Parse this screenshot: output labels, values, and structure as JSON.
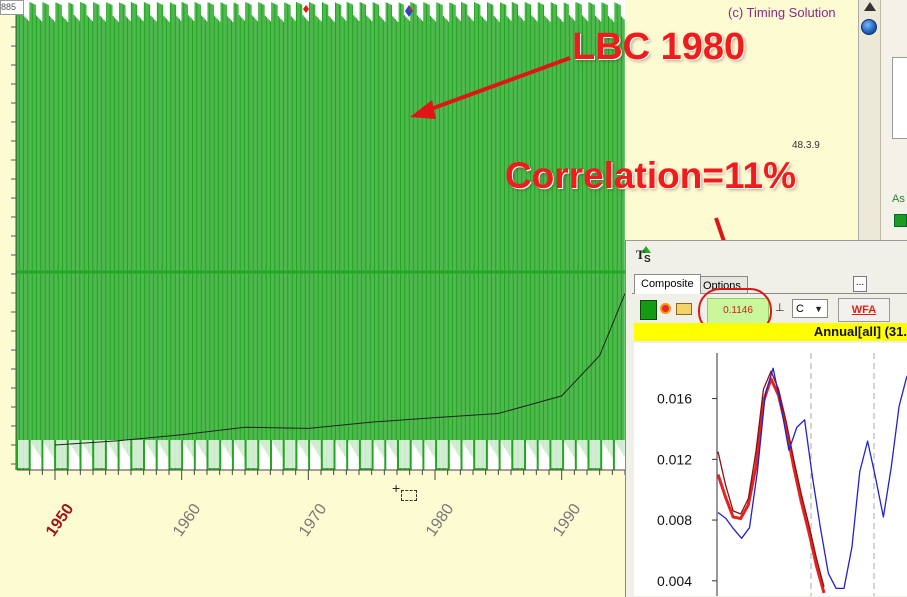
{
  "window": {
    "credit_text": "(c) Timing Solution",
    "top_left_badge": "885"
  },
  "annotations": {
    "lbc_label": "LBC 1980",
    "correlation_label": "Correlation=11%"
  },
  "main_chart": {
    "small_readout": "48.3.9"
  },
  "right_panel": {
    "label_as": "As"
  },
  "inset_window": {
    "logo": "T",
    "logo_sub": "S",
    "tabs": [
      {
        "label": "Composite"
      },
      {
        "label": "Options"
      }
    ],
    "more_button": "...",
    "correlation_value": "0.1146",
    "select_value": "C",
    "wfa_button": "WFA",
    "annual_label": "Annual[all]  (31."
  },
  "chart_data": [
    {
      "type": "line",
      "x": [
        1950,
        1955,
        1960,
        1965,
        1970,
        1975,
        1980,
        1985,
        1990,
        1993,
        1995
      ],
      "xlabel": "",
      "ylabel": "",
      "xlim": [
        1947,
        1995
      ],
      "x_ticks": [
        "1950",
        "1960",
        "1970",
        "1980",
        "1990"
      ],
      "series": [
        {
          "values": [
            0.05,
            0.07,
            0.09,
            0.11,
            0.1,
            0.12,
            0.14,
            0.16,
            0.22,
            0.35,
            0.55
          ],
          "color": "#222222"
        },
        {
          "oscillator": "LBC 1980",
          "color": "#22a622",
          "periods_per_year": 1
        }
      ],
      "colors": {
        "main_bg": "#fdfbd2",
        "oscillator": "#22a622",
        "price": "#222222"
      }
    },
    {
      "type": "line",
      "ylabel": "",
      "xlabel": "",
      "y_ticks": [
        0.016,
        0.012,
        0.008,
        0.004
      ],
      "ylim": [
        0.003,
        0.019
      ],
      "series": [
        {
          "values": [
            0.011,
            0.0095,
            0.0082,
            0.0081,
            0.009,
            0.0115,
            0.0158,
            0.0173,
            0.0162,
            0.0141,
            0.0115,
            0.0092,
            0.0072,
            0.005,
            0.0032
          ],
          "color": "#e32222"
        },
        {
          "values": [
            0.0125,
            0.0103,
            0.0086,
            0.0084,
            0.0094,
            0.0125,
            0.0166,
            0.0178,
            0.0166,
            0.0145,
            0.012,
            0.0097,
            0.0077,
            0.0055,
            0.0036
          ],
          "color": "#8b1111"
        },
        {
          "values": [
            0.0085,
            0.0081,
            0.0074,
            0.0068,
            0.0075,
            0.0112,
            0.0163,
            0.018,
            0.0155,
            0.0126,
            0.0141,
            0.0146,
            0.0108,
            0.0075,
            0.0045,
            0.0035,
            0.0035,
            0.0062,
            0.0112,
            0.0132,
            0.0108,
            0.0082,
            0.0115,
            0.0155,
            0.0175
          ],
          "color": "#2222c8"
        }
      ]
    }
  ]
}
